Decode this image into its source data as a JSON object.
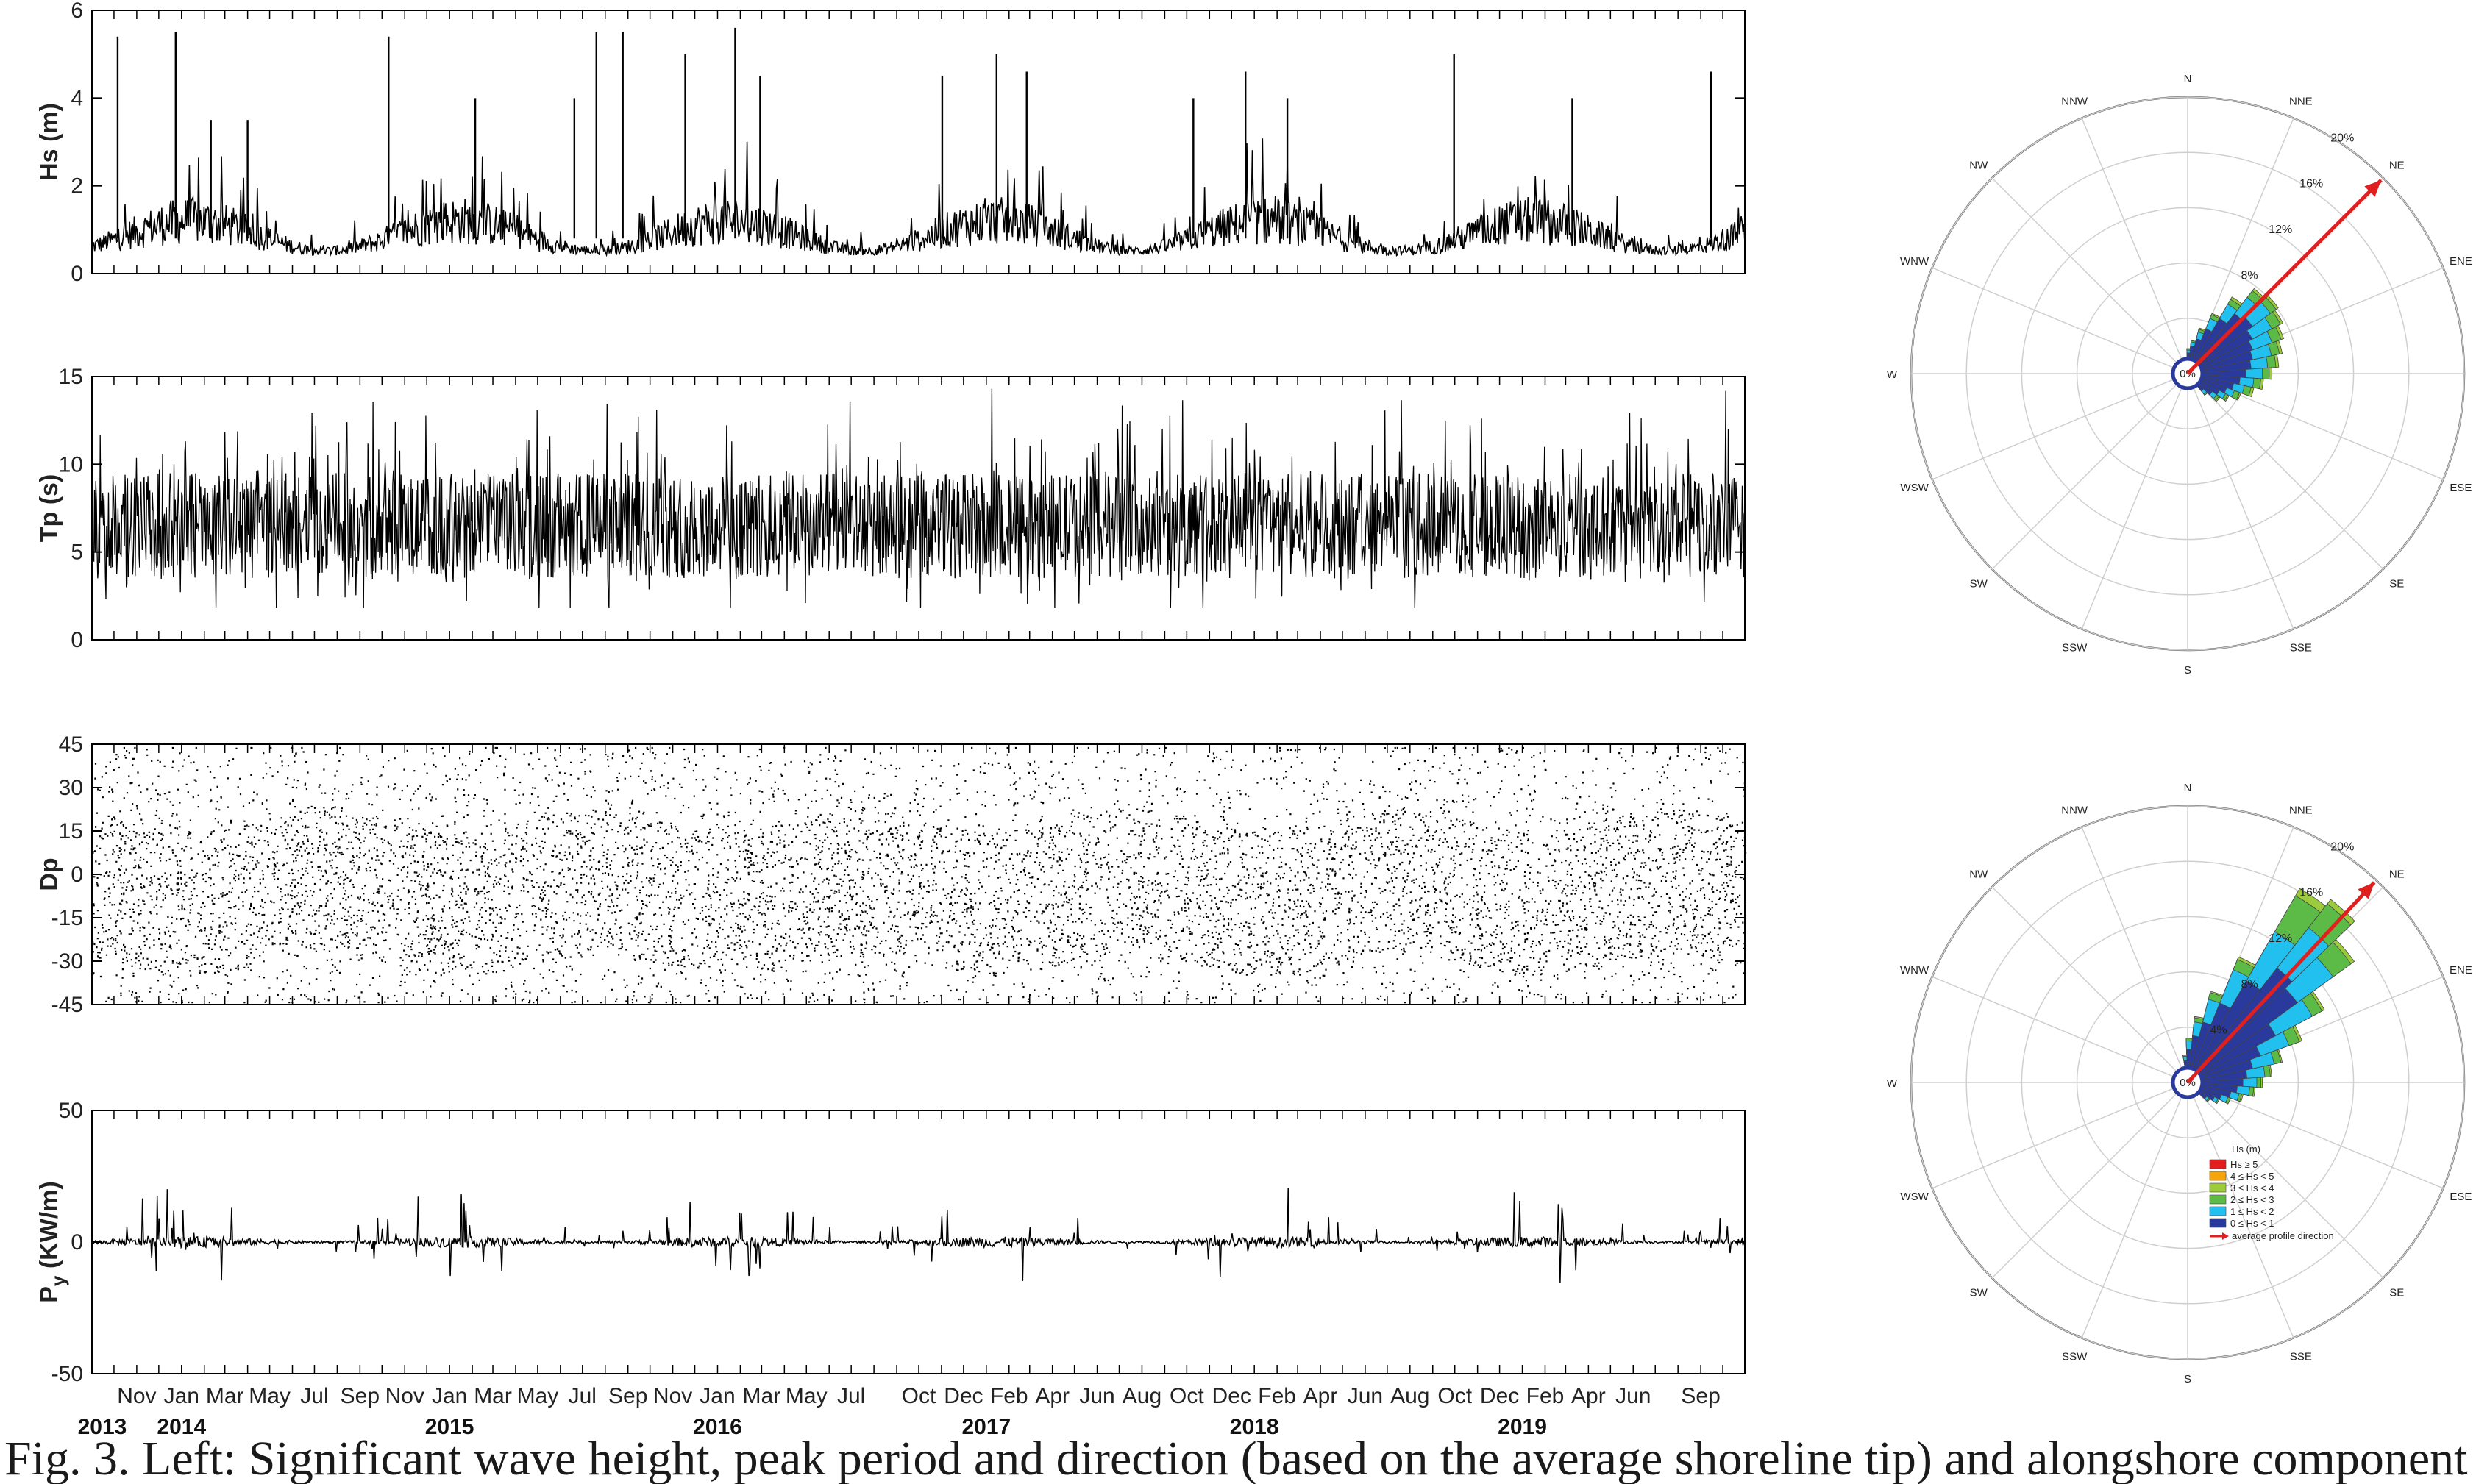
{
  "figure": {
    "caption": "Fig. 3. Left: Significant wave height, peak period and direction (based on the average shoreline tip) and alongshore component of the wave"
  },
  "chart_data": [
    {
      "type": "line",
      "ylabel": "Hs (m)",
      "ylim": [
        0,
        6
      ],
      "yticks": [
        0,
        2,
        4,
        6
      ],
      "xlim": [
        "2013-09-01",
        "2019-10-31"
      ],
      "summary": {
        "baseline": [
          0.3,
          1.6
        ],
        "peaks": [
          [
            "2013-10-06",
            5.4
          ],
          [
            "2013-12-24",
            5.5
          ],
          [
            "2014-02-10",
            3.5
          ],
          [
            "2014-04-01",
            3.5
          ],
          [
            "2014-10-10",
            5.4
          ],
          [
            "2015-02-05",
            4.0
          ],
          [
            "2015-06-20",
            4.0
          ],
          [
            "2015-07-20",
            5.5
          ],
          [
            "2015-08-25",
            5.5
          ],
          [
            "2015-11-18",
            5.0
          ],
          [
            "2016-01-25",
            5.6
          ],
          [
            "2016-02-28",
            4.5
          ],
          [
            "2016-11-02",
            4.5
          ],
          [
            "2017-01-15",
            5.0
          ],
          [
            "2017-02-25",
            4.6
          ],
          [
            "2017-10-10",
            4.0
          ],
          [
            "2017-12-20",
            4.6
          ],
          [
            "2018-02-15",
            4.0
          ],
          [
            "2018-09-30",
            5.0
          ],
          [
            "2019-03-10",
            4.0
          ],
          [
            "2019-09-15",
            4.6
          ]
        ]
      }
    },
    {
      "type": "line",
      "ylabel": "Tp (s)",
      "ylim": [
        0,
        15
      ],
      "yticks": [
        0,
        5,
        10,
        15
      ],
      "xlim": [
        "2013-09-01",
        "2019-10-31"
      ],
      "summary": {
        "range": [
          2,
          14.5
        ],
        "typical": [
          3.5,
          10
        ]
      }
    },
    {
      "type": "scatter",
      "ylabel": "Dp",
      "ylim": [
        -45,
        45
      ],
      "yticks": [
        -45,
        -30,
        -15,
        0,
        15,
        30,
        45
      ],
      "xlim": [
        "2013-09-01",
        "2019-10-31"
      ]
    },
    {
      "type": "line",
      "ylabel_main": "P",
      "ylabel_sub": "y",
      "ylabel_unit": " (KW/m)",
      "ylim": [
        -50,
        50
      ],
      "yticks": [
        -50,
        0,
        50
      ],
      "xlim": [
        "2013-09-01",
        "2019-10-31"
      ],
      "xticks": [
        "Nov",
        "Jan",
        "Mar",
        "May",
        "Jul",
        "Sep",
        "Nov",
        "Jan",
        "Mar",
        "May",
        "Jul",
        "Sep",
        "Nov",
        "Jan",
        "Mar",
        "May",
        "Jul",
        "Oct",
        "Dec",
        "Feb",
        "Apr",
        "Jun",
        "Aug",
        "Oct",
        "Dec",
        "Feb",
        "Apr",
        "Jun",
        "Aug",
        "Oct",
        "Dec",
        "Feb",
        "Apr",
        "Jun",
        "Sep"
      ],
      "xtick_dates": [
        "2013-11-01",
        "2014-01-01",
        "2014-03-01",
        "2014-05-01",
        "2014-07-01",
        "2014-09-01",
        "2014-11-01",
        "2015-01-01",
        "2015-03-01",
        "2015-05-01",
        "2015-07-01",
        "2015-09-01",
        "2015-11-01",
        "2016-01-01",
        "2016-03-01",
        "2016-05-01",
        "2016-07-01",
        "2016-10-01",
        "2016-12-01",
        "2017-02-01",
        "2017-04-01",
        "2017-06-01",
        "2017-08-01",
        "2017-10-01",
        "2017-12-01",
        "2018-02-01",
        "2018-04-01",
        "2018-06-01",
        "2018-08-01",
        "2018-10-01",
        "2018-12-01",
        "2019-02-01",
        "2019-04-01",
        "2019-06-01",
        "2019-09-01"
      ],
      "years": [
        [
          "2013",
          "2013-09-15"
        ],
        [
          "2014",
          "2014-01-01"
        ],
        [
          "2015",
          "2015-01-01"
        ],
        [
          "2016",
          "2016-01-01"
        ],
        [
          "2017",
          "2017-01-01"
        ],
        [
          "2018",
          "2018-01-01"
        ],
        [
          "2019",
          "2019-01-01"
        ]
      ]
    },
    {
      "type": "rose",
      "directions": [
        "N",
        "NNE",
        "NE",
        "ENE",
        "E",
        "ESE",
        "SE",
        "SSE",
        "S",
        "SSW",
        "SW",
        "WSW",
        "W",
        "WNW",
        "NW",
        "NNW"
      ],
      "rings": [
        "4%",
        "8%",
        "12%",
        "16%",
        "20%"
      ],
      "ring_values": [
        4,
        8,
        12,
        16,
        20
      ],
      "rings_shown": [
        "8%",
        "12%",
        "16%",
        "20%"
      ],
      "center_label": "0%",
      "rmax": 20,
      "average_direction_deg": 45,
      "sector_width_deg": 8,
      "bins": [
        {
          "angle": 42,
          "totals": [
            5.5,
            7.0,
            7.6,
            7.8
          ]
        },
        {
          "angle": 50,
          "totals": [
            5.8,
            7.4,
            7.9,
            8.1
          ]
        },
        {
          "angle": 58,
          "totals": [
            5.3,
            6.9,
            7.6,
            7.8
          ]
        },
        {
          "angle": 66,
          "totals": [
            5.0,
            6.5,
            7.2,
            7.4
          ]
        },
        {
          "angle": 74,
          "totals": [
            4.8,
            6.2,
            6.8,
            7.0
          ]
        },
        {
          "angle": 82,
          "totals": [
            4.6,
            5.8,
            6.4,
            6.6
          ]
        },
        {
          "angle": 90,
          "totals": [
            4.2,
            5.4,
            5.9,
            6.1
          ]
        },
        {
          "angle": 98,
          "totals": [
            3.8,
            4.8,
            5.3,
            5.5
          ]
        },
        {
          "angle": 106,
          "totals": [
            3.4,
            4.2,
            4.7,
            4.9
          ]
        },
        {
          "angle": 114,
          "totals": [
            3.0,
            3.6,
            4.0,
            4.1
          ]
        },
        {
          "angle": 122,
          "totals": [
            2.6,
            3.1,
            3.3,
            3.4
          ]
        },
        {
          "angle": 130,
          "totals": [
            2.2,
            2.6,
            2.8,
            2.9
          ]
        },
        {
          "angle": 138,
          "totals": [
            1.6,
            1.9,
            2.0,
            2.0
          ]
        },
        {
          "angle": 34,
          "totals": [
            4.6,
            5.8,
            6.2,
            6.4
          ]
        },
        {
          "angle": 26,
          "totals": [
            3.5,
            4.3,
            4.6,
            4.7
          ]
        },
        {
          "angle": 18,
          "totals": [
            2.6,
            3.1,
            3.3,
            3.4
          ]
        },
        {
          "angle": 10,
          "totals": [
            2.0,
            2.3,
            2.4,
            2.4
          ]
        },
        {
          "angle": 2,
          "totals": [
            1.5,
            1.7,
            1.8,
            1.8
          ]
        }
      ]
    },
    {
      "type": "rose",
      "directions": [
        "N",
        "NNE",
        "NE",
        "ENE",
        "E",
        "ESE",
        "SE",
        "SSE",
        "S",
        "SSW",
        "SW",
        "WSW",
        "W",
        "WNW",
        "NW",
        "NNW"
      ],
      "rings": [
        "4%",
        "8%",
        "12%",
        "16%",
        "20%"
      ],
      "ring_values": [
        4,
        8,
        12,
        16,
        20
      ],
      "rings_shown": [
        "4%",
        "8%",
        "12%",
        "16%",
        "20%"
      ],
      "center_label": "0%",
      "rmax": 20,
      "average_direction_deg": 43,
      "sector_width_deg": 8,
      "bins": [
        {
          "angle": 34,
          "totals": [
            8.5,
            12.6,
            15.6,
            16.2
          ]
        },
        {
          "angle": 42,
          "totals": [
            10.5,
            14.2,
            16.4,
            16.8
          ]
        },
        {
          "angle": 50,
          "totals": [
            9.8,
            13.0,
            14.6,
            14.9
          ]
        },
        {
          "angle": 58,
          "totals": [
            7.2,
            10.2,
            11.0,
            11.2
          ]
        },
        {
          "angle": 66,
          "totals": [
            5.6,
            7.8,
            8.6,
            8.8
          ]
        },
        {
          "angle": 74,
          "totals": [
            4.8,
            6.4,
            6.9,
            7.0
          ]
        },
        {
          "angle": 82,
          "totals": [
            4.3,
            5.6,
            6.0,
            6.1
          ]
        },
        {
          "angle": 90,
          "totals": [
            4.0,
            5.0,
            5.3,
            5.4
          ]
        },
        {
          "angle": 98,
          "totals": [
            3.6,
            4.5,
            4.8,
            4.9
          ]
        },
        {
          "angle": 106,
          "totals": [
            3.2,
            3.8,
            4.0,
            4.1
          ]
        },
        {
          "angle": 114,
          "totals": [
            2.6,
            3.1,
            3.3,
            3.3
          ]
        },
        {
          "angle": 122,
          "totals": [
            2.2,
            2.5,
            2.6,
            2.6
          ]
        },
        {
          "angle": 130,
          "totals": [
            1.7,
            1.9,
            2.0,
            2.0
          ]
        },
        {
          "angle": 26,
          "totals": [
            6.2,
            8.8,
            9.6,
            9.8
          ]
        },
        {
          "angle": 18,
          "totals": [
            4.5,
            6.2,
            6.7,
            6.8
          ]
        },
        {
          "angle": 10,
          "totals": [
            3.4,
            4.4,
            4.7,
            4.8
          ]
        },
        {
          "angle": 2,
          "totals": [
            2.4,
            3.0,
            3.2,
            3.2
          ]
        },
        {
          "angle": 354,
          "totals": [
            1.6,
            1.9,
            2.0,
            2.0
          ]
        }
      ],
      "legend": {
        "title": "Hs (m)",
        "items": [
          {
            "label": "Hs ≥ 5",
            "color": "#e41e1e"
          },
          {
            "label": "4 ≤ Hs < 5",
            "color": "#f5a40b"
          },
          {
            "label": "3 ≤ Hs < 4",
            "color": "#9ccb3b"
          },
          {
            "label": "2 ≤ Hs < 3",
            "color": "#5cbb46"
          },
          {
            "label": "1 ≤ Hs < 2",
            "color": "#22c0ee"
          },
          {
            "label": "0 ≤ Hs < 1",
            "color": "#2a3a9c"
          }
        ],
        "arrow_label": "average profile direction"
      }
    }
  ],
  "colors": {
    "series_line": "#000000",
    "arrow": "#e0201e",
    "grid": "#c8c8c8",
    "bin_colors": [
      "#2a3a9c",
      "#22c0ee",
      "#5cbb46",
      "#9ccb3b"
    ]
  }
}
